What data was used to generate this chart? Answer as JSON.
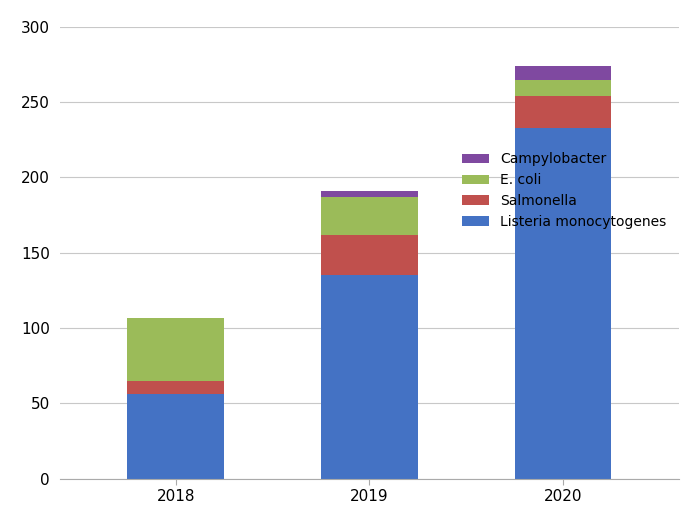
{
  "years": [
    "2018",
    "2019",
    "2020"
  ],
  "listeria": [
    56,
    135,
    233
  ],
  "salmonella": [
    9,
    27,
    21
  ],
  "ecoli": [
    42,
    25,
    11
  ],
  "campylobacter": [
    0,
    4,
    9
  ],
  "colors": {
    "listeria": "#4472C4",
    "salmonella": "#C0504D",
    "ecoli": "#9BBB59",
    "campylobacter": "#7F49A0"
  },
  "ylim": [
    0,
    300
  ],
  "yticks": [
    0,
    50,
    100,
    150,
    200,
    250,
    300
  ],
  "bar_width": 0.5,
  "legend_labels": [
    "Campylobacter",
    "E. coli",
    "Salmonella",
    "Listeria monocytogenes"
  ],
  "background_color": "#ffffff",
  "grid_color": "#c8c8c8"
}
